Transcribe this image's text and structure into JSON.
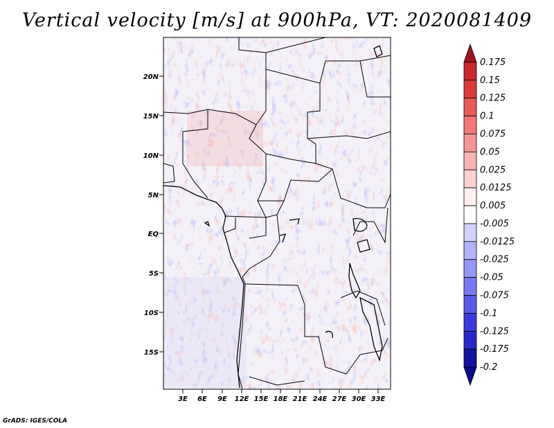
{
  "title": "Vertical velocity [m/s] at 900hPa, VT: 2020081409",
  "credit": "GrADS: IGES/COLA",
  "map": {
    "lat_labels": [
      "20N",
      "15N",
      "10N",
      "5N",
      "EQ",
      "5S",
      "10S",
      "15S"
    ],
    "lon_labels": [
      "3E",
      "6E",
      "9E",
      "12E",
      "15E",
      "18E",
      "21E",
      "24E",
      "27E",
      "30E",
      "33E"
    ]
  },
  "colorbar": {
    "labels": [
      "0.175",
      "0.15",
      "0.125",
      "0.1",
      "0.075",
      "0.05",
      "0.025",
      "0.0125",
      "0.005",
      "-0.005",
      "-0.0125",
      "-0.025",
      "-0.05",
      "-0.075",
      "-0.1",
      "-0.125",
      "-0.175",
      "-0.2"
    ],
    "colors": [
      "#a0141e",
      "#c8282d",
      "#dc3c3c",
      "#e65a5a",
      "#f07878",
      "#f49696",
      "#f8b4b4",
      "#fcd2d2",
      "#fff0f0",
      "#ffffff",
      "#d2d2fc",
      "#b4b4f8",
      "#9696f4",
      "#7878f0",
      "#5a5ae6",
      "#3c3cdc",
      "#2828c8",
      "#14149f",
      "#0a0a8c"
    ]
  }
}
